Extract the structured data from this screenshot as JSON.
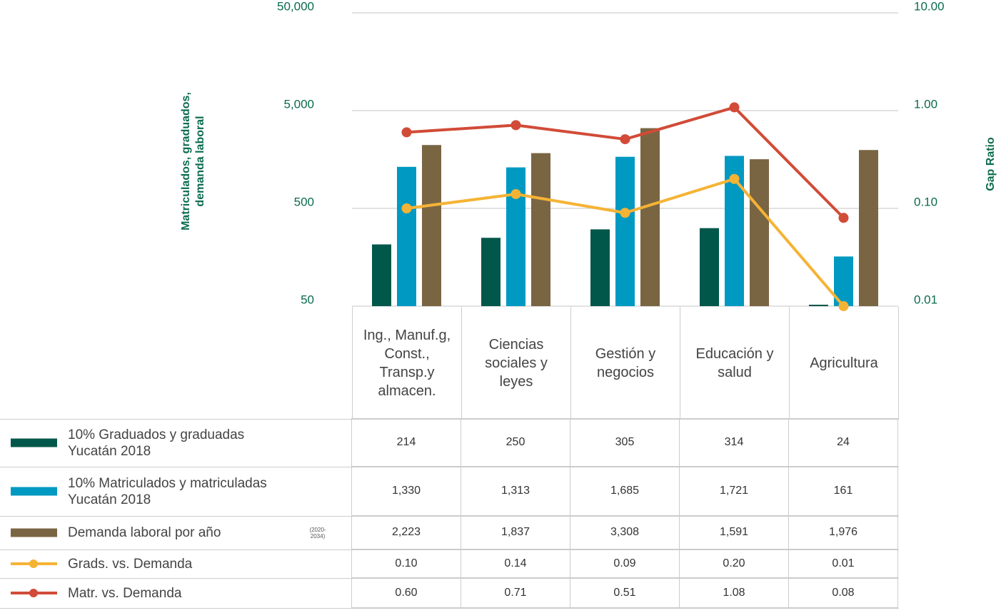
{
  "chart_data": {
    "type": "bar",
    "categories": [
      "Ing., Manuf.g, Const., Transp.y almacen.",
      "Ciencias sociales y leyes",
      "Gestión y negocios",
      "Educación y salud",
      "Agricultura"
    ],
    "y_label": "Matriculados, graduados, demanda laboral",
    "y2_label": "Gap Ratio",
    "log_scale": true,
    "grid": true,
    "ylim": [
      50,
      50000
    ],
    "yticks": [
      50,
      500,
      {
        "value": 5000,
        "label": "5,000"
      },
      {
        "value": 50000,
        "label": "50,000"
      }
    ],
    "y2lim": [
      0.01,
      10
    ],
    "y2ticks": [
      0.01,
      {
        "value": 0.1,
        "label": "0.10"
      },
      {
        "value": 1,
        "label": "1.00"
      },
      {
        "value": 10,
        "label": "10.00"
      }
    ],
    "series": [
      {
        "name": "10% Graduados y graduadas Yucatán 2018",
        "type": "bar",
        "color": "#02574b",
        "values": [
          214,
          250,
          305,
          314,
          24
        ]
      },
      {
        "name": "10% Matriculados y matriculadas Yucatán 2018",
        "type": "bar",
        "color": "#0099c2",
        "values": [
          1330,
          1313,
          1685,
          1721,
          161
        ],
        "value_labels": [
          "1,330",
          "1,313",
          "1,685",
          "1,721",
          "161"
        ]
      },
      {
        "name": "Demanda laboral por año",
        "note": "(2020-2034)",
        "type": "bar",
        "color": "#7a6543",
        "values": [
          2223,
          1837,
          3308,
          1591,
          1976
        ],
        "value_labels": [
          "2,223",
          "1,837",
          "3,308",
          "1,591",
          "1,976"
        ]
      },
      {
        "name": "Grads. vs. Demanda",
        "type": "line",
        "axis": "y2",
        "color": "#f5b335",
        "values": [
          0.1,
          0.14,
          0.09,
          0.2,
          0.01
        ],
        "value_labels": [
          "0.10",
          "0.14",
          "0.09",
          "0.20",
          "0.01"
        ]
      },
      {
        "name": "Matr. vs. Demanda",
        "type": "line",
        "axis": "y2",
        "color": "#d14b38",
        "values": [
          0.6,
          0.71,
          0.51,
          1.08,
          0.08
        ],
        "value_labels": [
          "0.60",
          "0.71",
          "0.51",
          "1.08",
          "0.08"
        ]
      }
    ]
  }
}
